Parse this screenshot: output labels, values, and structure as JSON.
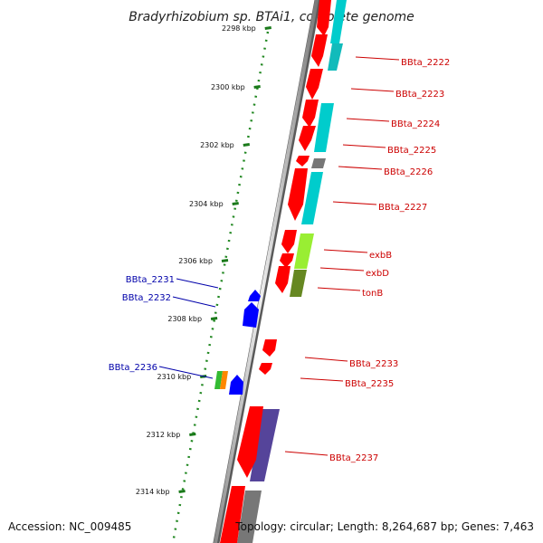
{
  "title": "Bradyrhizobium sp. BTAi1, complete genome",
  "ticks": [
    "2298 kbp",
    "2300 kbp",
    "2302 kbp",
    "2304 kbp",
    "2306 kbp",
    "2308 kbp",
    "2310 kbp",
    "2312 kbp",
    "2314 kbp"
  ],
  "right_labels": [
    "BBta_2222",
    "BBta_2223",
    "BBta_2224",
    "BBta_2225",
    "BBta_2226",
    "BBta_2227",
    "exbB",
    "exbD",
    "tonB",
    "BBta_2233",
    "BBta_2235",
    "BBta_2237"
  ],
  "left_labels": [
    "BBta_2231",
    "BBta_2232",
    "BBta_2236"
  ],
  "footer": {
    "accession": "Accession: NC_009485",
    "summary": "Topology: circular; Length: 8,264,687 bp; Genes: 7,463"
  },
  "colors": {
    "forward_gene": "#ff0000",
    "reverse_gene": "#0000ff",
    "cds_cyan": "#00cccc",
    "cds_green": "#99ee33",
    "cds_olive": "#668822",
    "cds_gray": "#777777",
    "cds_purple": "#55449a",
    "right_label": "#cc0000",
    "left_label": "#0000aa",
    "ruler": "#228822"
  }
}
